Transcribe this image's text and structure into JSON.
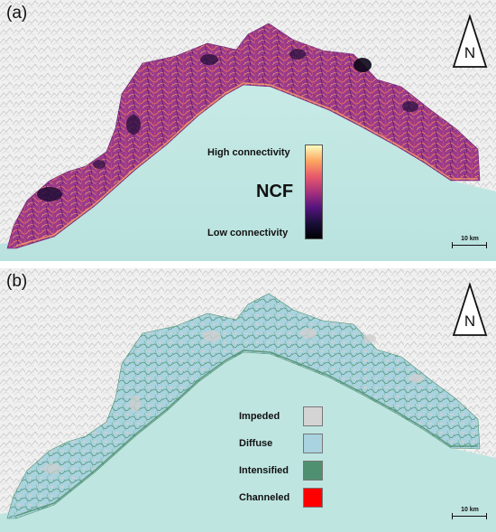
{
  "panel_a": {
    "label": "(a)",
    "north_label": "N",
    "scale_label": "10 km",
    "legend": {
      "title": "NCF",
      "high_label": "High connectivity",
      "low_label": "Low connectivity",
      "ramp_colors": [
        "#fcfdbf",
        "#fca560",
        "#e8596b",
        "#a8327d",
        "#56147d",
        "#1a0f3a",
        "#000004"
      ]
    }
  },
  "panel_b": {
    "label": "(b)",
    "north_label": "N",
    "scale_label": "10 km",
    "legend": [
      {
        "label": "Impeded",
        "color": "#d4d4d4"
      },
      {
        "label": "Diffuse",
        "color": "#a9d3df"
      },
      {
        "label": "Intensified",
        "color": "#4f9070"
      },
      {
        "label": "Channeled",
        "color": "#ff0000"
      }
    ]
  },
  "colors": {
    "sea": "#bfe5e1",
    "relief": "#eeeeee"
  }
}
